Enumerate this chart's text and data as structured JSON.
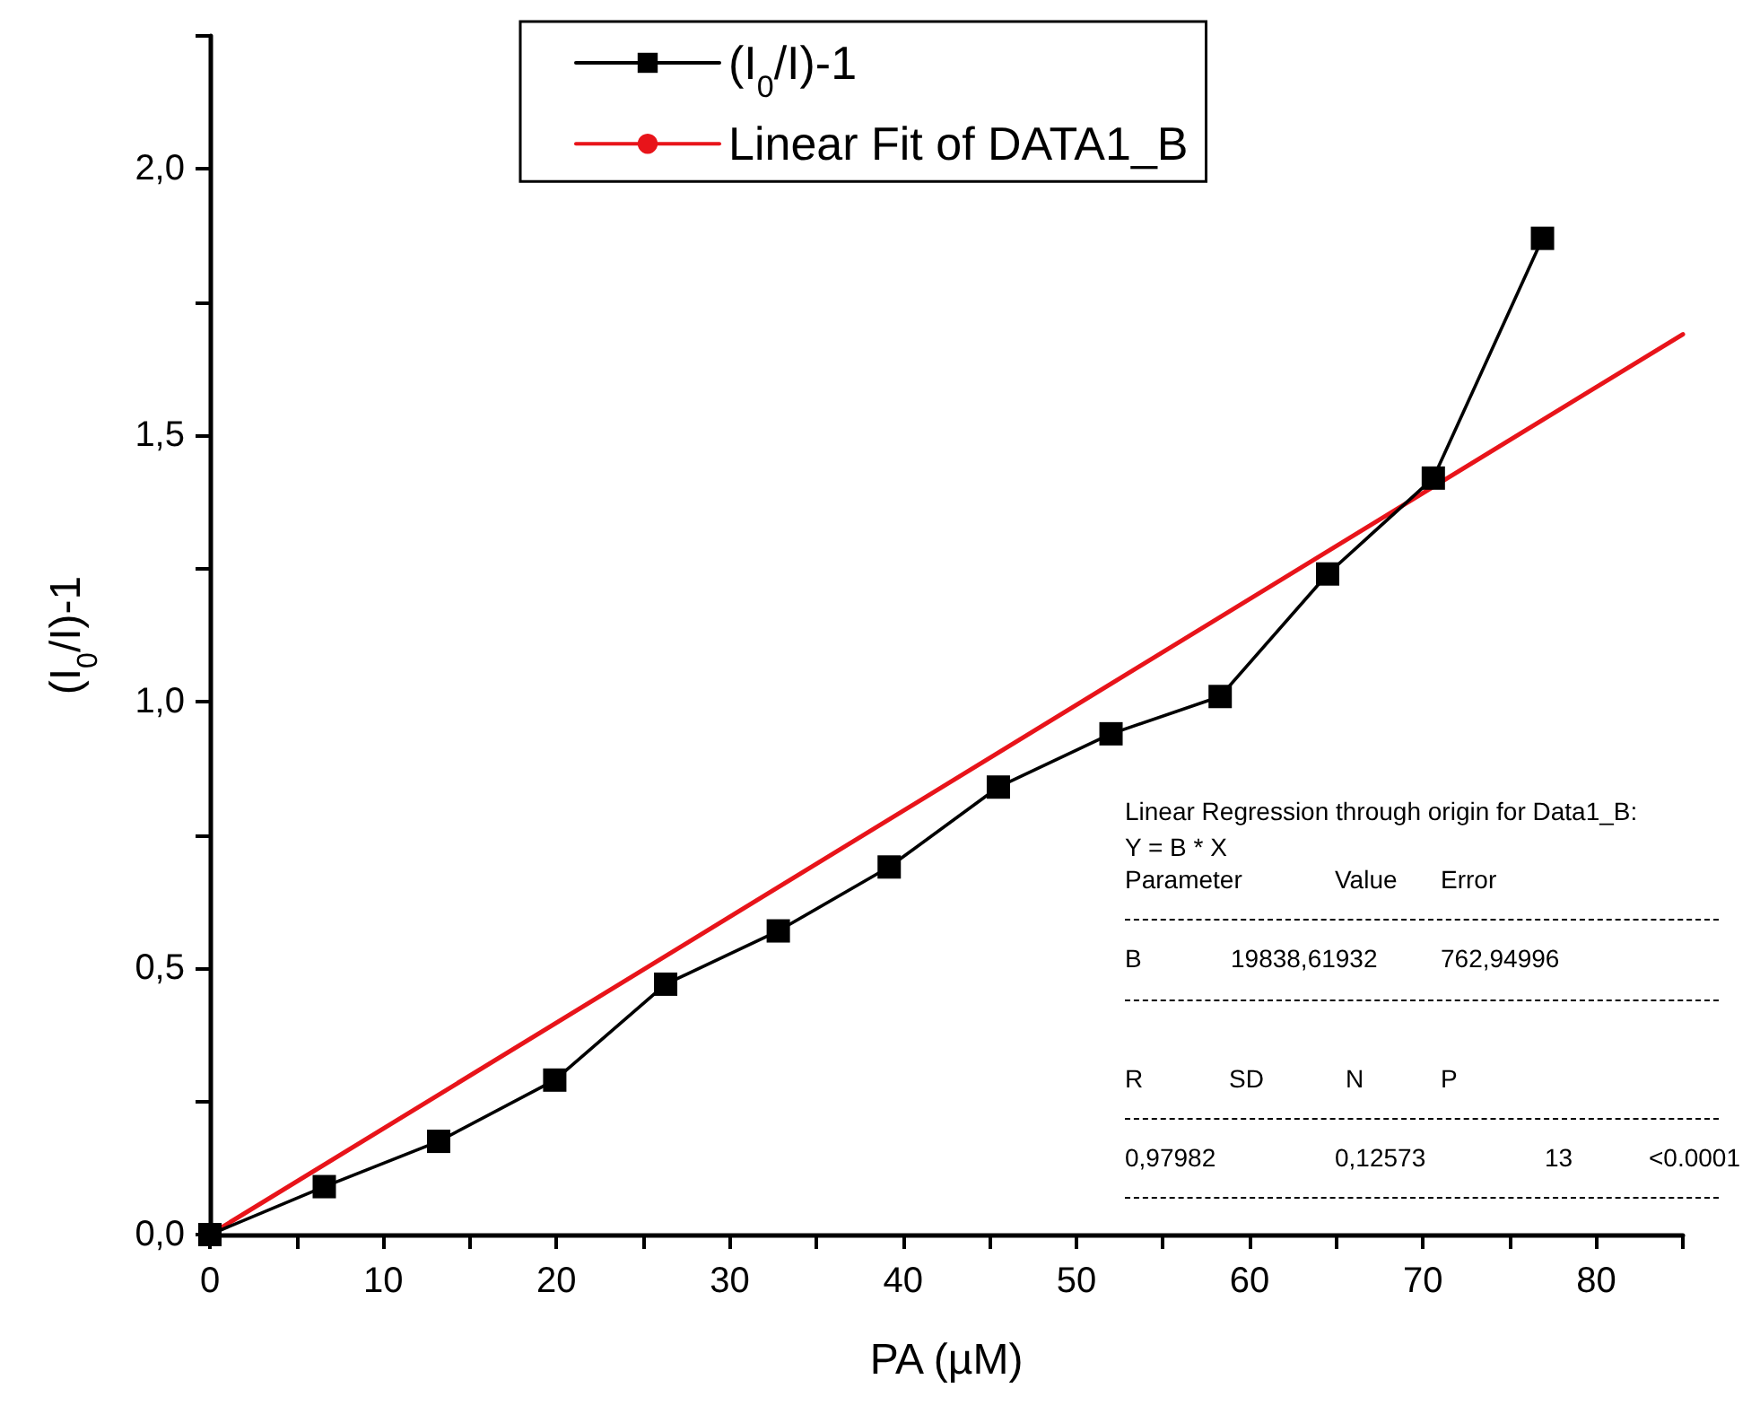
{
  "chart_data": {
    "type": "line",
    "xlabel": "PA (µM)",
    "ylabel": "(I$_{0}$/I)-1",
    "xlim": [
      0,
      85
    ],
    "ylim": [
      0,
      2.25
    ],
    "xticks": [
      0,
      {
        "value": 5,
        "label": null
      },
      10,
      {
        "value": 15,
        "label": null
      },
      20,
      {
        "value": 25,
        "label": null
      },
      30,
      {
        "value": 35,
        "label": null
      },
      40,
      {
        "value": 45,
        "label": null
      },
      50,
      {
        "value": 55,
        "label": null
      },
      60,
      {
        "value": 65,
        "label": null
      },
      70,
      {
        "value": 75,
        "label": null
      },
      80,
      {
        "value": 85,
        "label": null
      }
    ],
    "yticks": [
      {
        "value": 0,
        "label": "0,0"
      },
      {
        "value": 0.25,
        "label": null
      },
      {
        "value": 0.5,
        "label": "0,5"
      },
      {
        "value": 0.75,
        "label": null
      },
      {
        "value": 1,
        "label": "1,0"
      },
      {
        "value": 1.25,
        "label": null
      },
      {
        "value": 1.5,
        "label": "1,5"
      },
      {
        "value": 1.75,
        "label": null
      },
      {
        "value": 2,
        "label": "2,0"
      },
      {
        "value": 2.25,
        "label": null
      }
    ],
    "grid": false,
    "legend": "top",
    "marker": "square",
    "line_style": "solid",
    "series": [
      {
        "name": "(I$_{0}$/I)-1",
        "color": "#000000",
        "x": [
          0,
          6.6,
          13.2,
          19.9,
          26.3,
          32.8,
          39.2,
          45.5,
          52,
          58.3,
          64.5,
          70.6,
          76.9
        ],
        "values": [
          0,
          0.09,
          0.175,
          0.29,
          0.47,
          0.57,
          0.69,
          0.84,
          0.94,
          1.01,
          1.24,
          1.42,
          1.87
        ]
      },
      {
        "name": "Linear Fit of DATA1_B",
        "color": "#e8141a",
        "type": "line",
        "marker": "none",
        "x": [
          0,
          85
        ],
        "values": [
          0,
          1.69
        ]
      }
    ],
    "annotations": [
      "Linear Regression through origin for Data1_B:",
      "Y = B * X",
      "Parameter",
      "Value",
      "Error",
      "B",
      "19838,61932",
      "762,94996",
      "R",
      "SD",
      "N",
      "P",
      "0,97982",
      "0,12573",
      "13",
      "<0.0001"
    ]
  }
}
